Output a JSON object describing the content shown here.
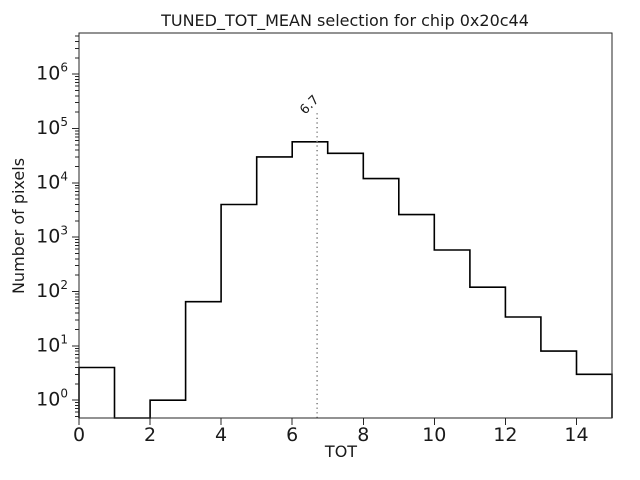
{
  "chart_data": {
    "type": "histogram-step",
    "title": "TUNED_TOT_MEAN selection for chip 0x20c44",
    "xlabel": "TOT",
    "ylabel": "Number of pixels",
    "yscale": "log",
    "xlim": [
      0,
      15
    ],
    "ylim": [
      0.47,
      5730000
    ],
    "x_ticks": [
      0,
      2,
      4,
      6,
      8,
      10,
      12,
      14
    ],
    "y_tick_exponents": [
      0,
      1,
      2,
      3,
      4,
      5,
      6
    ],
    "grid": false,
    "legend": null,
    "bin_edges": [
      0,
      1,
      2,
      3,
      4,
      5,
      6,
      7,
      8,
      9,
      10,
      11,
      12,
      13,
      14,
      15
    ],
    "counts": [
      4,
      0,
      1,
      65,
      4000,
      30000,
      57000,
      35000,
      12000,
      2600,
      580,
      120,
      34,
      8,
      3
    ],
    "line_color": "#000000",
    "frame_color": "#262626",
    "vline": {
      "x": 6.7,
      "label": "6.7",
      "style": "dotted",
      "color": "#7a7a7a",
      "label_color": "#8c8c8c",
      "ymax_fraction": 0.8
    }
  }
}
